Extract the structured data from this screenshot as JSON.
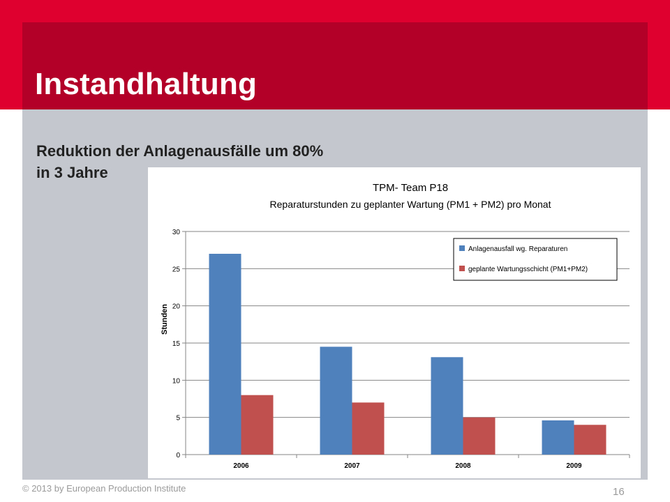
{
  "slide": {
    "title": "Instandhaltung",
    "subtitle_line1": "Reduktion der Anlagenausfälle um 80%",
    "subtitle_line2": "in 3 Jahre",
    "footer": "© 2013 by European Production Institute",
    "page_number": "16"
  },
  "colors": {
    "brand_red": "#e0002f",
    "series_blue": "#4f81bd",
    "series_red": "#c0504d"
  },
  "chart_data": {
    "type": "bar",
    "title": "TPM- Team P18",
    "subtitle": "Reparaturstunden zu geplanter Wartung (PM1 + PM2) pro Monat",
    "xlabel": "",
    "ylabel": "Stunden",
    "categories": [
      "2006",
      "2007",
      "2008",
      "2009"
    ],
    "series": [
      {
        "name": "Anlagenausfall wg. Reparaturen",
        "values": [
          27,
          14.5,
          13.1,
          4.6
        ]
      },
      {
        "name": "geplante Wartungsschicht (PM1+PM2)",
        "values": [
          8,
          7,
          5,
          4
        ]
      }
    ],
    "ylim": [
      0,
      30
    ],
    "yticks": [
      "0",
      "5",
      "10",
      "15",
      "20",
      "25",
      "30"
    ],
    "grid": true,
    "legend_position": "top-right"
  }
}
